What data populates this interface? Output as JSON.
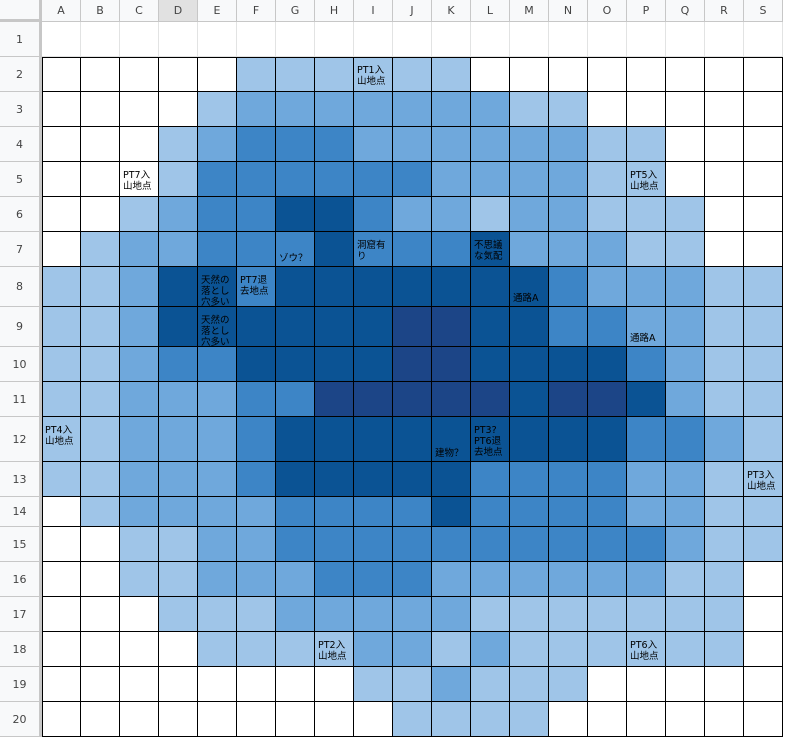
{
  "columns": [
    "A",
    "B",
    "C",
    "D",
    "E",
    "F",
    "G",
    "H",
    "I",
    "J",
    "K",
    "L",
    "M",
    "N",
    "O",
    "P",
    "Q",
    "R",
    "S"
  ],
  "rows": [
    "1",
    "2",
    "3",
    "4",
    "5",
    "6",
    "7",
    "8",
    "9",
    "10",
    "11",
    "12",
    "13",
    "14",
    "15",
    "16",
    "17",
    "18",
    "19",
    "20"
  ],
  "selected_column": "D",
  "palette": {
    "0": "#ffffff",
    "1": "#9fc5e8",
    "2": "#6fa8dc",
    "3": "#3d85c6",
    "4": "#0b5394",
    "5": "#1c4587"
  },
  "grid": [
    "0000000000000000000",
    "0000011111100000000",
    "0000122222221100000",
    "0001233322222211000",
    "0001333333222211000",
    "0012334432212211100",
    "0122333433342221100",
    "1124434444444322211",
    "1124444445544332211",
    "1123344445544443211",
    "1122233555554554211",
    "1122234444444443321",
    "1122234444433332211",
    "0122223333433332211",
    "0011223333333333211",
    "0011222333222222110",
    "0001112222211111110",
    "0000111122121111110",
    "0000000011211100000",
    "0000000001111000000"
  ],
  "labels": [
    {
      "col": 8,
      "row": 1,
      "lines": [
        "PT1入",
        "山地点"
      ],
      "color": "#000000"
    },
    {
      "col": 2,
      "row": 4,
      "lines": [
        "PT7入",
        "山地点"
      ],
      "color": "#000000"
    },
    {
      "col": 15,
      "row": 4,
      "lines": [
        "PT5入",
        "山地点"
      ],
      "color": "#000000"
    },
    {
      "col": 6,
      "row": 6,
      "lines": [
        "ゾウ？"
      ],
      "color": "#000000",
      "bottom": true
    },
    {
      "col": 8,
      "row": 6,
      "lines": [
        "洞窟有",
        "り"
      ],
      "color": "#000000"
    },
    {
      "col": 11,
      "row": 6,
      "lines": [
        "不思議",
        "な気配"
      ],
      "color": "#000000"
    },
    {
      "col": 4,
      "row": 7,
      "lines": [
        "天然の",
        "落とし",
        "穴多い"
      ],
      "color": "#000000"
    },
    {
      "col": 5,
      "row": 7,
      "lines": [
        "PT7退",
        "去地点"
      ],
      "color": "#000000"
    },
    {
      "col": 12,
      "row": 7,
      "lines": [
        "通路A"
      ],
      "color": "#000000",
      "bottom": true
    },
    {
      "col": 4,
      "row": 8,
      "lines": [
        "天然の",
        "落とし",
        "穴多い"
      ],
      "color": "#000000"
    },
    {
      "col": 15,
      "row": 8,
      "lines": [
        "通路A"
      ],
      "color": "#000000",
      "bottom": true
    },
    {
      "col": 0,
      "row": 11,
      "lines": [
        "PT4入",
        "山地点"
      ],
      "color": "#000000"
    },
    {
      "col": 10,
      "row": 11,
      "lines": [
        "建物？"
      ],
      "color": "#000000",
      "bottom": true
    },
    {
      "col": 11,
      "row": 11,
      "lines": [
        "PT3?",
        "PT6退",
        "去地点"
      ],
      "color": "#000000"
    },
    {
      "col": 18,
      "row": 12,
      "lines": [
        "PT3入",
        "山地点"
      ],
      "color": "#000000"
    },
    {
      "col": 7,
      "row": 17,
      "lines": [
        "PT2入",
        "山地点"
      ],
      "color": "#000000"
    },
    {
      "col": 15,
      "row": 17,
      "lines": [
        "PT6入",
        "山地点"
      ],
      "color": "#000000"
    }
  ]
}
